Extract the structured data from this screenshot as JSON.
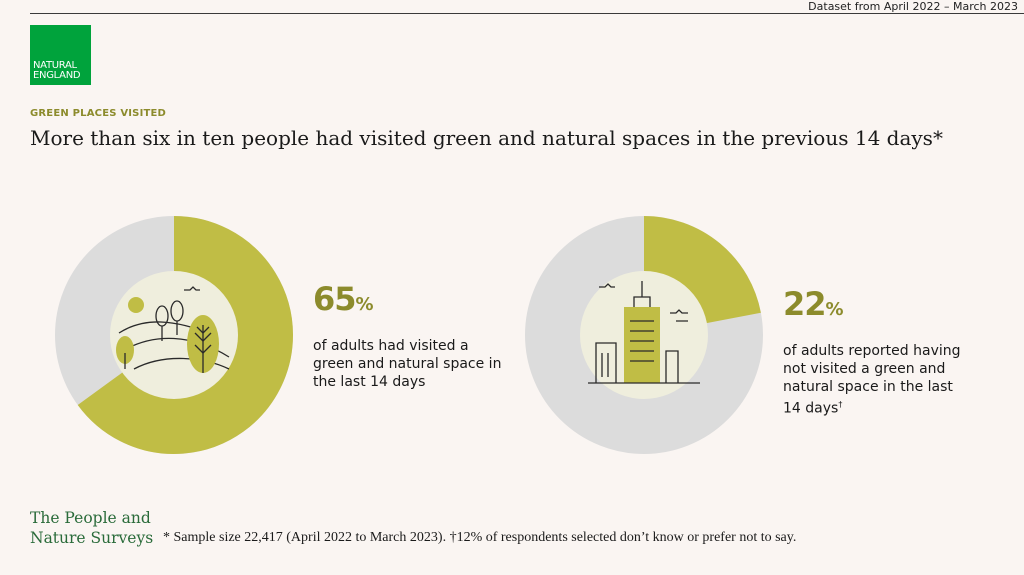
{
  "header": {
    "dataset_note": "Dataset from April 2022 – March 2023"
  },
  "logo": {
    "line1": "NATURAL",
    "line2": "ENGLAND"
  },
  "section_label": "GREEN PLACES VISITED",
  "headline": "More than six in ten people had visited green and natural spaces in the previous 14 days*",
  "colors": {
    "accent": "#c0bd45",
    "track": "#dcdcdc",
    "center": "#efeedd",
    "text_accent": "#8c8b2c",
    "brand_green": "#00a33c"
  },
  "chart_data": [
    {
      "type": "pie",
      "values": [
        65,
        35
      ],
      "value_label": "65",
      "unit": "%",
      "description": "of adults had visited a green and natural space in the last 14 days",
      "icon": "trees-hills-icon"
    },
    {
      "type": "pie",
      "values": [
        22,
        78
      ],
      "value_label": "22",
      "unit": "%",
      "description": "of adults reported having not visited a green and natural space in the last 14 days",
      "description_mark": "†",
      "icon": "city-buildings-icon"
    }
  ],
  "footer": {
    "brand_line1": "The People and",
    "brand_line2": "Nature Surveys",
    "footnote": "* Sample size 22,417 (April 2022 to March 2023).  †12% of respondents selected don’t know or prefer not to say."
  }
}
